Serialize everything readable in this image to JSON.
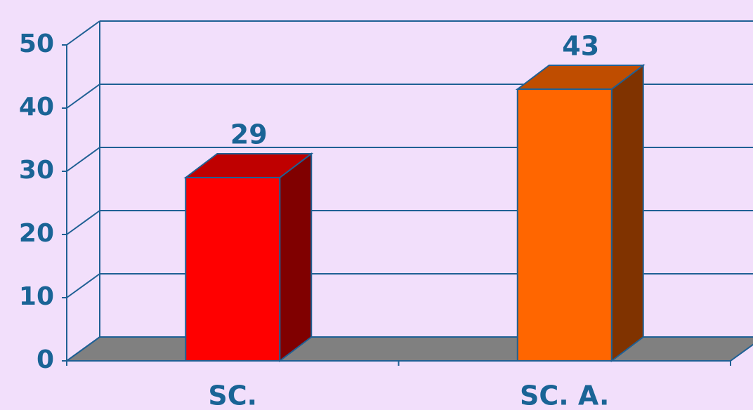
{
  "chart_data": {
    "type": "bar3d",
    "categories": [
      "SC.",
      "SC. A."
    ],
    "values": [
      29,
      43
    ],
    "colors": [
      "#ff0000",
      "#ff6600"
    ],
    "ylim": [
      0,
      50
    ],
    "yticks": [
      0,
      10,
      20,
      30,
      40,
      50
    ],
    "grid": true
  }
}
